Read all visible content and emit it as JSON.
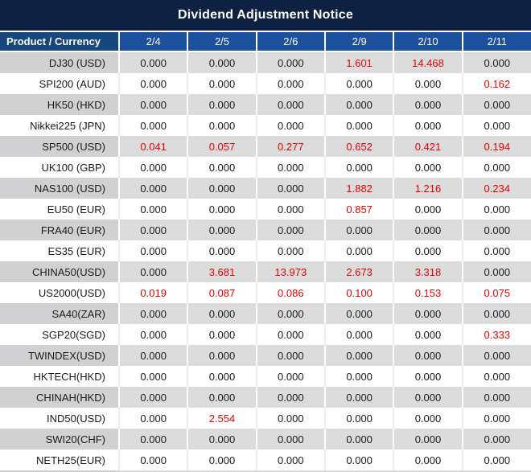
{
  "title": "Dividend Adjustment Notice",
  "table": {
    "header": {
      "product_label": "Product / Currency",
      "dates": [
        "2/4",
        "2/5",
        "2/6",
        "2/9",
        "2/10",
        "2/11"
      ]
    },
    "rows": [
      {
        "product": "DJ30 (USD)",
        "values": [
          "0.000",
          "0.000",
          "0.000",
          "1.601",
          "14.468",
          "0.000"
        ]
      },
      {
        "product": "SPI200 (AUD)",
        "values": [
          "0.000",
          "0.000",
          "0.000",
          "0.000",
          "0.000",
          "0.162"
        ]
      },
      {
        "product": "HK50 (HKD)",
        "values": [
          "0.000",
          "0.000",
          "0.000",
          "0.000",
          "0.000",
          "0.000"
        ]
      },
      {
        "product": "Nikkei225 (JPN)",
        "values": [
          "0.000",
          "0.000",
          "0.000",
          "0.000",
          "0.000",
          "0.000"
        ]
      },
      {
        "product": "SP500 (USD)",
        "values": [
          "0.041",
          "0.057",
          "0.277",
          "0.652",
          "0.421",
          "0.194"
        ]
      },
      {
        "product": "UK100 (GBP)",
        "values": [
          "0.000",
          "0.000",
          "0.000",
          "0.000",
          "0.000",
          "0.000"
        ]
      },
      {
        "product": "NAS100 (USD)",
        "values": [
          "0.000",
          "0.000",
          "0.000",
          "1.882",
          "1.216",
          "0.234"
        ]
      },
      {
        "product": "EU50 (EUR)",
        "values": [
          "0.000",
          "0.000",
          "0.000",
          "0.857",
          "0.000",
          "0.000"
        ]
      },
      {
        "product": "FRA40 (EUR)",
        "values": [
          "0.000",
          "0.000",
          "0.000",
          "0.000",
          "0.000",
          "0.000"
        ]
      },
      {
        "product": "ES35 (EUR)",
        "values": [
          "0.000",
          "0.000",
          "0.000",
          "0.000",
          "0.000",
          "0.000"
        ]
      },
      {
        "product": "CHINA50(USD)",
        "values": [
          "0.000",
          "3.681",
          "13.973",
          "2.673",
          "3.318",
          "0.000"
        ]
      },
      {
        "product": "US2000(USD)",
        "values": [
          "0.019",
          "0.087",
          "0.086",
          "0.100",
          "0.153",
          "0.075"
        ]
      },
      {
        "product": "SA40(ZAR)",
        "values": [
          "0.000",
          "0.000",
          "0.000",
          "0.000",
          "0.000",
          "0.000"
        ]
      },
      {
        "product": "SGP20(SGD)",
        "values": [
          "0.000",
          "0.000",
          "0.000",
          "0.000",
          "0.000",
          "0.333"
        ]
      },
      {
        "product": "TWINDEX(USD)",
        "values": [
          "0.000",
          "0.000",
          "0.000",
          "0.000",
          "0.000",
          "0.000"
        ]
      },
      {
        "product": "HKTECH(HKD)",
        "values": [
          "0.000",
          "0.000",
          "0.000",
          "0.000",
          "0.000",
          "0.000"
        ]
      },
      {
        "product": "CHINAH(HKD)",
        "values": [
          "0.000",
          "0.000",
          "0.000",
          "0.000",
          "0.000",
          "0.000"
        ]
      },
      {
        "product": "IND50(USD)",
        "values": [
          "0.000",
          "2.554",
          "0.000",
          "0.000",
          "0.000",
          "0.000"
        ]
      },
      {
        "product": "SWI20(CHF)",
        "values": [
          "0.000",
          "0.000",
          "0.000",
          "0.000",
          "0.000",
          "0.000"
        ]
      },
      {
        "product": "NETH25(EUR)",
        "values": [
          "0.000",
          "0.000",
          "0.000",
          "0.000",
          "0.000",
          "0.000"
        ]
      }
    ]
  },
  "colors": {
    "title_bg": "#0f2142",
    "header_product_bg": "#16477e",
    "header_date_bg": "#1b509d",
    "row_gray_product": "#d1d1d3",
    "row_gray_value": "#dcdcdd",
    "value_black": "#1a1a1a",
    "value_red": "#ec0000"
  }
}
